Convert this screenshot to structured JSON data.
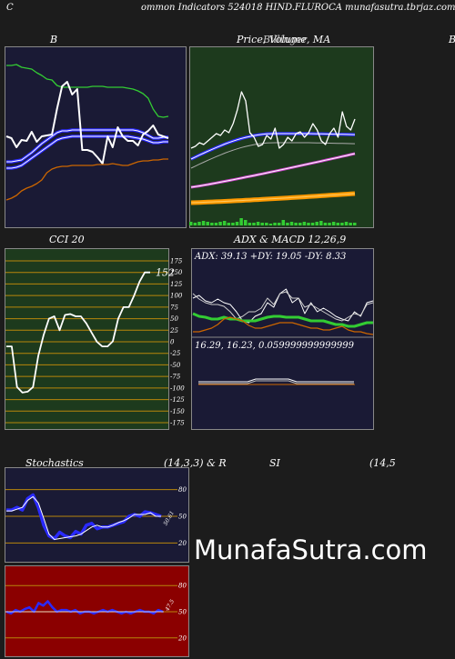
{
  "header": {
    "left_letter": "C",
    "title": "ommon  Indicators 524018 HIND.FLUROCA munafasutra.tbrjaz.com"
  },
  "labels": {
    "b_title": "B",
    "price_title": "Price,  Volume,  MA",
    "price_overlap": "Billinger",
    "edge_b": "B",
    "cci_title": "CCI 20",
    "adx_title": "ADX  & MACD 12,26,9",
    "stoch_title": "Stochastics",
    "stoch_params": "(14,3,3) & R",
    "rsi_title": "SI",
    "rsi_params": "(14,5"
  },
  "watermark": "MunafaSutra.com",
  "colors": {
    "navy_panel": "#1a1a35",
    "green_panel": "#1d3a1d",
    "red_panel": "#8b0000",
    "blue_line": "#2a2aff",
    "green_line": "#33cc33",
    "orange_line": "#cc6600"
  },
  "chart_data": [
    {
      "id": "bollinger",
      "type": "line",
      "title": "B",
      "series": [
        {
          "role": "upper",
          "values": [
            72,
            72,
            71,
            74,
            75,
            76,
            80,
            83,
            87,
            88,
            94,
            96,
            96,
            96,
            96,
            96,
            96,
            95,
            95,
            95,
            96,
            96,
            96,
            96,
            97,
            98,
            100,
            103,
            108,
            120,
            128,
            129,
            128
          ]
        },
        {
          "role": "middle",
          "values": [
            178,
            178,
            177,
            176,
            172,
            168,
            163,
            158,
            154,
            150,
            146,
            144,
            144,
            143,
            143,
            143,
            143,
            143,
            143,
            143,
            143,
            143,
            143,
            143,
            143,
            143,
            144,
            146,
            149,
            152,
            152,
            151,
            151
          ]
        },
        {
          "role": "lower",
          "values": [
            185,
            185,
            184,
            182,
            178,
            174,
            170,
            166,
            162,
            158,
            154,
            152,
            151,
            150,
            150,
            150,
            150,
            150,
            150,
            150,
            150,
            150,
            150,
            150,
            150,
            151,
            152,
            153,
            155,
            157,
            157,
            156,
            156
          ]
        },
        {
          "role": "price",
          "values": [
            150,
            152,
            162,
            154,
            155,
            145,
            156,
            150,
            149,
            148,
            120,
            95,
            90,
            104,
            98,
            165,
            165,
            167,
            173,
            180,
            150,
            162,
            140,
            150,
            155,
            155,
            160,
            148,
            144,
            138,
            148,
            150,
            152
          ]
        },
        {
          "role": "orange",
          "values": [
            220,
            218,
            215,
            210,
            207,
            205,
            202,
            198,
            190,
            186,
            184,
            183,
            183,
            182,
            182,
            182,
            182,
            182,
            181,
            181,
            181,
            180,
            181,
            182,
            182,
            180,
            178,
            177,
            177,
            176,
            176,
            175,
            175
          ]
        }
      ]
    },
    {
      "id": "price_volume_ma",
      "type": "line",
      "title": "Price,  Volume,  MA"
    },
    {
      "id": "cci",
      "type": "line",
      "title": "CCI 20",
      "y_ticks": [
        175,
        150,
        125,
        100,
        75,
        50,
        25,
        0,
        -25,
        -50,
        -75,
        -100,
        -125,
        -150,
        -175
      ],
      "ylim": [
        -175,
        175
      ],
      "last_value_label": "152",
      "values": [
        -10,
        -10,
        -98,
        -110,
        -108,
        -98,
        -30,
        15,
        50,
        55,
        25,
        58,
        60,
        55,
        55,
        40,
        20,
        0,
        -10,
        -10,
        1,
        50,
        75,
        75,
        100,
        130,
        150,
        150
      ]
    },
    {
      "id": "adx_macd",
      "type": "line",
      "title": "ADX  & MACD 12,26,9",
      "adx_text": "ADX: 39.13 +DY: 19.05 -DY: 8.33",
      "macd_text": "16.29,  16.23,  0.059999999999999"
    },
    {
      "id": "stochastics",
      "type": "line",
      "title": "Stochastics",
      "params": "(14,3,3) & R",
      "y_ticks": [
        80,
        50,
        20
      ],
      "ylim": [
        0,
        100
      ],
      "value_label": "50.61"
    },
    {
      "id": "rsi",
      "type": "line",
      "title": "SI",
      "params": "(14,5",
      "y_ticks": [
        80,
        50,
        20
      ],
      "ylim": [
        0,
        100
      ],
      "value_label": "47.5"
    }
  ]
}
